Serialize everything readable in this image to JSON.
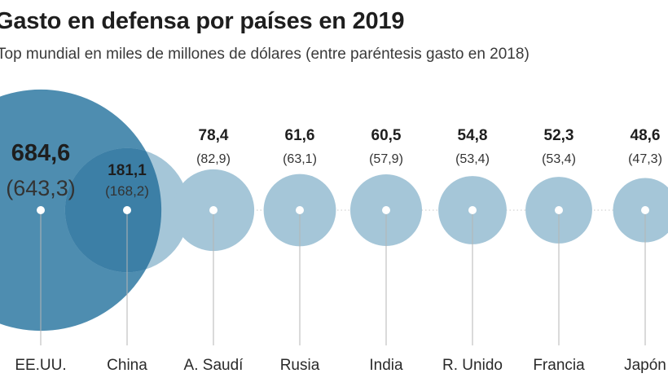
{
  "title": "Gasto en defensa por países en 2019",
  "subtitle": "Top mundial en miles de millones de dólares (entre paréntesis gasto en 2018)",
  "colors": {
    "bubble_main": "#4e8db0",
    "bubble_light": "#a5c6d8",
    "bubble_overlap": "#3c7fa6",
    "stem": "#b5b5b5",
    "dots_line": "#c8c8c8",
    "label_on_dark": "#ffffff"
  },
  "chart_data": {
    "type": "bubble",
    "title": "Gasto en defensa por países en 2019",
    "subtitle": "Top mundial en miles de millones de dólares (entre paréntesis gasto en 2018)",
    "categories": [
      "EE.UU.",
      "China",
      "A. Saudí",
      "Rusia",
      "India",
      "R. Unido",
      "Francia",
      "Japón"
    ],
    "series": [
      {
        "name": "2019",
        "values": [
          684.6,
          181.1,
          78.4,
          61.6,
          60.5,
          54.8,
          52.3,
          48.6
        ]
      },
      {
        "name": "2018",
        "values": [
          643.3,
          168.2,
          82.9,
          63.1,
          57.9,
          53.4,
          53.4,
          47.3
        ]
      }
    ],
    "labels_2019": [
      "684,6",
      "181,1",
      "78,4",
      "61,6",
      "60,5",
      "54,8",
      "52,3",
      "48,6"
    ],
    "labels_2018": [
      "(643,3)",
      "(168,2)",
      "(82,9)",
      "(63,1)",
      "(57,9)",
      "(53,4)",
      "(53,4)",
      "(47,3)"
    ],
    "encoding": "bubble area proportional to 2019 value",
    "legend": "none",
    "grid": false
  }
}
